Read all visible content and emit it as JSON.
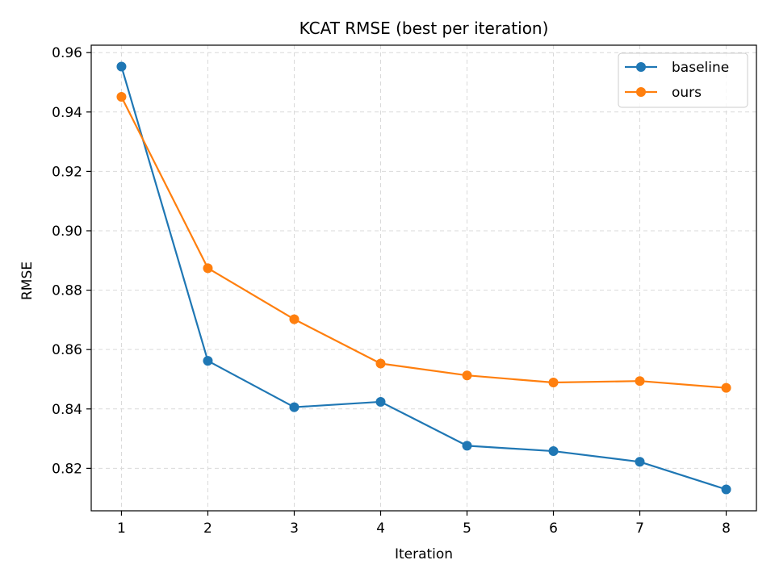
{
  "chart_data": {
    "type": "line",
    "title": "KCAT RMSE (best per iteration)",
    "xlabel": "Iteration",
    "ylabel": "RMSE",
    "x": [
      1,
      2,
      3,
      4,
      5,
      6,
      7,
      8
    ],
    "xticks": [
      1,
      2,
      3,
      4,
      5,
      6,
      7,
      8
    ],
    "yticks": [
      0.82,
      0.84,
      0.86,
      0.88,
      0.9,
      0.92,
      0.94,
      0.96
    ],
    "xlim": [
      0.65,
      8.35
    ],
    "ylim": [
      0.8057,
      0.9625
    ],
    "grid": true,
    "legend_position": "top-right",
    "series": [
      {
        "name": "baseline",
        "color": "#1f77b4",
        "values": [
          0.9553,
          0.8562,
          0.8406,
          0.8424,
          0.8276,
          0.8258,
          0.8222,
          0.8129
        ]
      },
      {
        "name": "ours",
        "color": "#ff7f0e",
        "values": [
          0.9451,
          0.8874,
          0.8702,
          0.8553,
          0.8513,
          0.8489,
          0.8494,
          0.8471
        ]
      }
    ]
  }
}
